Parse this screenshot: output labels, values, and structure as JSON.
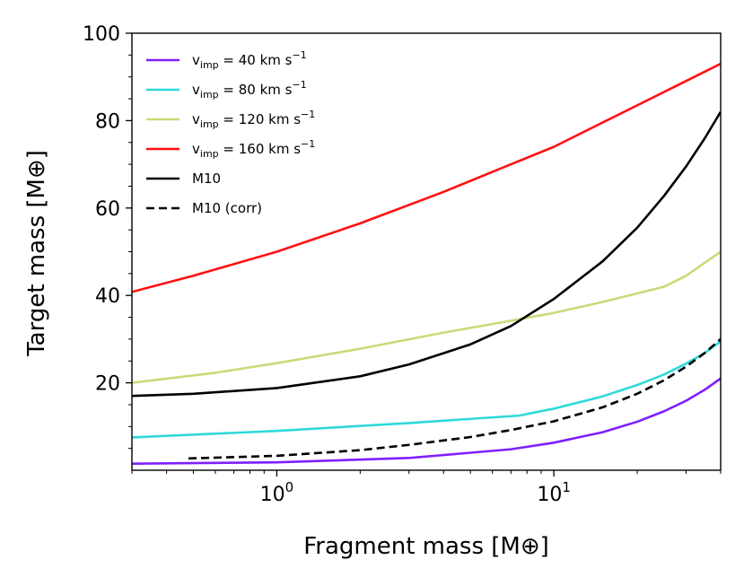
{
  "chart_data": {
    "type": "line",
    "title": "",
    "xlabel": "Fragment mass [M⊕]",
    "ylabel": "Target mass [M⊕]",
    "xscale": "log",
    "xlim": [
      0.3,
      40
    ],
    "ylim": [
      0,
      100
    ],
    "x_tick_labels": [
      {
        "value": 1,
        "base": "10",
        "exp": "0"
      },
      {
        "value": 10,
        "base": "10",
        "exp": "1"
      }
    ],
    "y_ticks": [
      20,
      40,
      60,
      80,
      100
    ],
    "y_tick_labels": [
      "20",
      "40",
      "60",
      "80",
      "100"
    ],
    "grid": false,
    "legend_position": "upper-left",
    "series": [
      {
        "name": "v_imp = 40 km s^-1",
        "legend": {
          "v": "v",
          "sub": "imp",
          "rest": " = 40 km s",
          "sup": "−1"
        },
        "color": "#7f1fff",
        "dash": "solid",
        "x": [
          0.3,
          1.0,
          3.0,
          7.0,
          10.0,
          15.0,
          20.0,
          25.0,
          30.0,
          35.0,
          40.0
        ],
        "y": [
          1.5,
          1.8,
          2.8,
          4.8,
          6.3,
          8.7,
          11.1,
          13.5,
          15.9,
          18.4,
          21.0
        ]
      },
      {
        "name": "v_imp = 80 km s^-1",
        "legend": {
          "v": "v",
          "sub": "imp",
          "rest": " = 80 km s",
          "sup": "−1"
        },
        "color": "#2fd9d9",
        "dash": "solid",
        "x": [
          0.3,
          1.0,
          3.0,
          7.5,
          10.0,
          15.0,
          20.0,
          25.0,
          30.0,
          35.0,
          40.0
        ],
        "y": [
          7.5,
          9.0,
          10.8,
          12.5,
          14.1,
          16.9,
          19.5,
          21.9,
          24.4,
          26.8,
          29.5
        ]
      },
      {
        "name": "v_imp = 120 km s^-1",
        "legend": {
          "v": "v",
          "sub": "imp",
          "rest": " = 120 km s",
          "sup": "−1"
        },
        "color": "#cdd97a",
        "dash": "solid",
        "x": [
          0.3,
          0.6,
          1.0,
          2.0,
          4.0,
          7.0,
          10.0,
          15.0,
          25.0,
          30.0,
          40.0
        ],
        "y": [
          20.0,
          22.3,
          24.5,
          27.8,
          31.5,
          34.2,
          36.0,
          38.5,
          42.0,
          44.5,
          50.0
        ]
      },
      {
        "name": "v_imp = 160 km s^-1",
        "legend": {
          "v": "v",
          "sub": "imp",
          "rest": " = 160 km s",
          "sup": "−1"
        },
        "color": "#ff1010",
        "dash": "solid",
        "x": [
          0.3,
          0.5,
          1.0,
          2.0,
          4.0,
          7.0,
          10.0,
          20.0,
          40.0
        ],
        "y": [
          40.8,
          44.5,
          50.0,
          56.5,
          63.7,
          70.0,
          74.0,
          83.5,
          93.0
        ]
      },
      {
        "name": "M10",
        "legend": {
          "v": "M10",
          "sub": "",
          "rest": "",
          "sup": ""
        },
        "color": "#000000",
        "dash": "solid",
        "x": [
          0.3,
          0.5,
          1.0,
          2.0,
          3.0,
          5.0,
          7.0,
          10.0,
          15.0,
          20.0,
          25.0,
          30.0,
          35.0,
          40.0
        ],
        "y": [
          17.0,
          17.5,
          18.8,
          21.5,
          24.2,
          28.8,
          33.0,
          39.2,
          47.8,
          55.5,
          62.8,
          69.5,
          75.9,
          82.0
        ]
      },
      {
        "name": "M10 (corr)",
        "legend": {
          "v": "M10 (corr)",
          "sub": "",
          "rest": "",
          "sup": ""
        },
        "color": "#000000",
        "dash": "dashed",
        "x": [
          0.48,
          1.0,
          2.0,
          3.0,
          5.0,
          7.0,
          10.0,
          15.0,
          20.0,
          25.0,
          30.0,
          35.0,
          40.0
        ],
        "y": [
          2.7,
          3.3,
          4.6,
          5.8,
          7.6,
          9.2,
          11.2,
          14.4,
          17.5,
          20.6,
          23.7,
          26.8,
          30.0
        ]
      }
    ]
  }
}
